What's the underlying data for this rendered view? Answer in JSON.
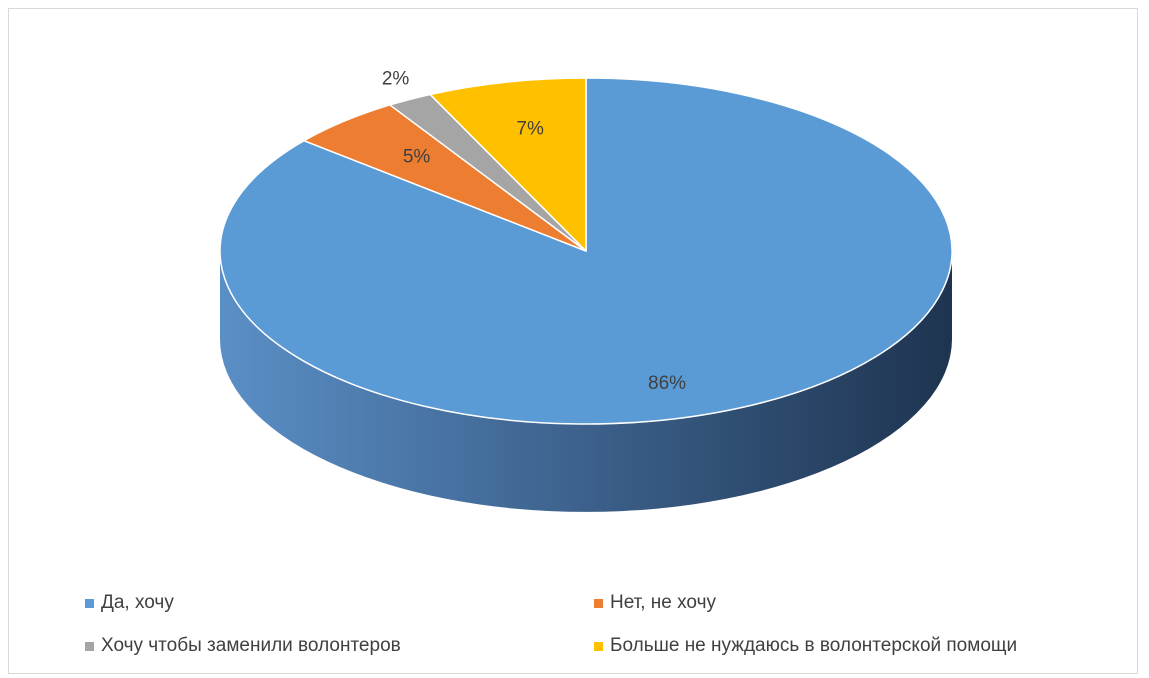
{
  "chart_data": {
    "type": "pie",
    "style": "3d",
    "title": "",
    "legend_position": "bottom",
    "series": [
      {
        "name": "Да, хочу",
        "value": 86,
        "label": "86%",
        "color": "#5B9BD5"
      },
      {
        "name": "Нет, не хочу",
        "value": 5,
        "label": "5%",
        "color": "#ED7D31"
      },
      {
        "name": "Хочу чтобы заменили волонтеров",
        "value": 2,
        "label": "2%",
        "color": "#A5A5A5"
      },
      {
        "name": "Больше не нуждаюсь в волонтерской помощи",
        "value": 7,
        "label": "7%",
        "color": "#FFC000"
      }
    ]
  }
}
